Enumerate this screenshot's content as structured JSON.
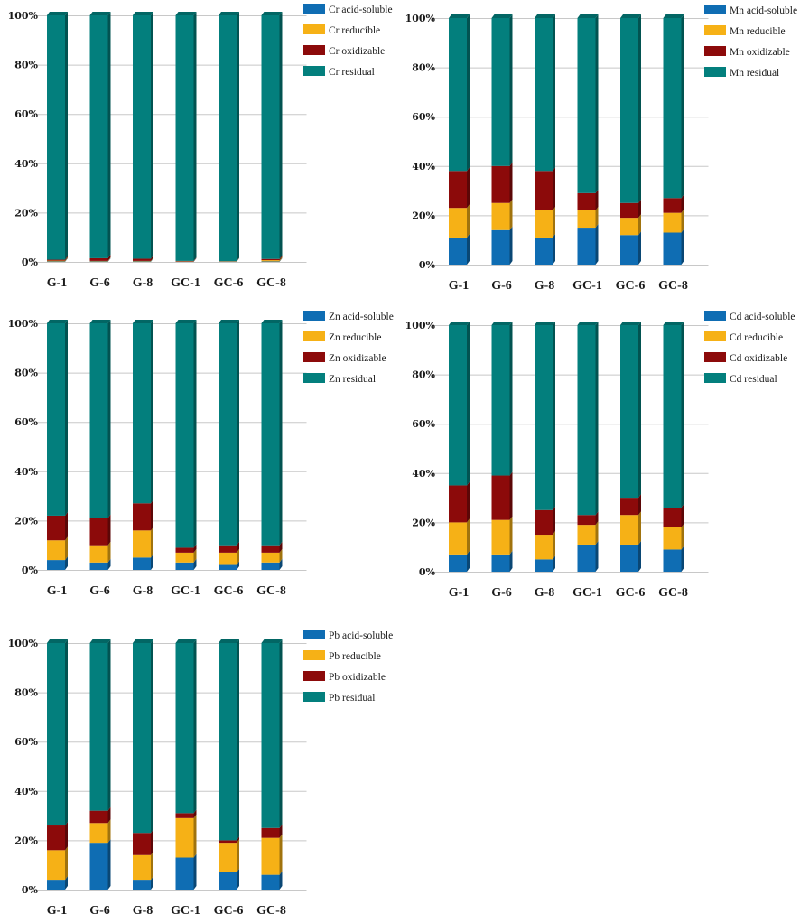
{
  "colors": {
    "acid_soluble": "#0f6db3",
    "reducible": "#f6b116",
    "oxidizable": "#8c0a0a",
    "residual": "#037f7d"
  },
  "yticks": [
    "0%",
    "20%",
    "40%",
    "60%",
    "80%",
    "100%"
  ],
  "chart_data": [
    {
      "type": "bar",
      "stacked": true,
      "element": "Cr",
      "categories": [
        "G-1",
        "G-6",
        "G-8",
        "GC-1",
        "GC-6",
        "GC-8"
      ],
      "ylim": [
        0,
        100
      ],
      "series": [
        {
          "name": "Cr acid-soluble",
          "key": "acid_soluble",
          "values": [
            0.2,
            0.2,
            0.2,
            0.1,
            0.1,
            0.2
          ]
        },
        {
          "name": "Cr reducible",
          "key": "reducible",
          "values": [
            0.3,
            0.2,
            0.2,
            0.1,
            0.1,
            0.5
          ]
        },
        {
          "name": "Cr oxidizable",
          "key": "oxidizable",
          "values": [
            0.4,
            1.1,
            0.9,
            0.2,
            0.1,
            0.5
          ]
        },
        {
          "name": "Cr residual",
          "key": "residual",
          "values": [
            99.1,
            98.5,
            98.7,
            99.6,
            99.7,
            98.8
          ]
        }
      ]
    },
    {
      "type": "bar",
      "stacked": true,
      "element": "Mn",
      "categories": [
        "G-1",
        "G-6",
        "G-8",
        "GC-1",
        "GC-6",
        "GC-8"
      ],
      "ylim": [
        0,
        100
      ],
      "series": [
        {
          "name": "Mn acid-soluble",
          "key": "acid_soluble",
          "values": [
            11,
            14,
            11,
            15,
            12,
            13
          ]
        },
        {
          "name": "Mn reducible",
          "key": "reducible",
          "values": [
            12,
            11,
            11,
            7,
            7,
            8
          ]
        },
        {
          "name": "Mn oxidizable",
          "key": "oxidizable",
          "values": [
            15,
            15,
            16,
            7,
            6,
            6
          ]
        },
        {
          "name": "Mn residual",
          "key": "residual",
          "values": [
            62,
            60,
            62,
            71,
            75,
            73
          ]
        }
      ]
    },
    {
      "type": "bar",
      "stacked": true,
      "element": "Zn",
      "categories": [
        "G-1",
        "G-6",
        "G-8",
        "GC-1",
        "GC-6",
        "GC-8"
      ],
      "ylim": [
        0,
        100
      ],
      "series": [
        {
          "name": "Zn acid-soluble",
          "key": "acid_soluble",
          "values": [
            4,
            3,
            5,
            3,
            2,
            3
          ]
        },
        {
          "name": "Zn reducible",
          "key": "reducible",
          "values": [
            8,
            7,
            11,
            4,
            5,
            4
          ]
        },
        {
          "name": "Zn oxidizable",
          "key": "oxidizable",
          "values": [
            10,
            11,
            11,
            2,
            3,
            3
          ]
        },
        {
          "name": "Zn residual",
          "key": "residual",
          "values": [
            78,
            79,
            73,
            91,
            90,
            90
          ]
        }
      ]
    },
    {
      "type": "bar",
      "stacked": true,
      "element": "Cd",
      "categories": [
        "G-1",
        "G-6",
        "G-8",
        "GC-1",
        "GC-6",
        "GC-8"
      ],
      "ylim": [
        0,
        100
      ],
      "series": [
        {
          "name": "Cd acid-soluble",
          "key": "acid_soluble",
          "values": [
            7,
            7,
            5,
            11,
            11,
            9
          ]
        },
        {
          "name": "Cd reducible",
          "key": "reducible",
          "values": [
            13,
            14,
            10,
            8,
            12,
            9
          ]
        },
        {
          "name": "Cd oxidizable",
          "key": "oxidizable",
          "values": [
            15,
            18,
            10,
            4,
            7,
            8
          ]
        },
        {
          "name": "Cd residual",
          "key": "residual",
          "values": [
            65,
            61,
            75,
            77,
            70,
            74
          ]
        }
      ]
    },
    {
      "type": "bar",
      "stacked": true,
      "element": "Pb",
      "categories": [
        "G-1",
        "G-6",
        "G-8",
        "GC-1",
        "GC-6",
        "GC-8"
      ],
      "ylim": [
        0,
        100
      ],
      "series": [
        {
          "name": "Pb acid-soluble",
          "key": "acid_soluble",
          "values": [
            4,
            19,
            4,
            13,
            7,
            6
          ]
        },
        {
          "name": "Pb reducible",
          "key": "reducible",
          "values": [
            12,
            8,
            10,
            16,
            12,
            15
          ]
        },
        {
          "name": "Pb oxidizable",
          "key": "oxidizable",
          "values": [
            10,
            5,
            9,
            2,
            1,
            4
          ]
        },
        {
          "name": "Pb residual",
          "key": "residual",
          "values": [
            74,
            68,
            77,
            69,
            80,
            75
          ]
        }
      ]
    }
  ]
}
